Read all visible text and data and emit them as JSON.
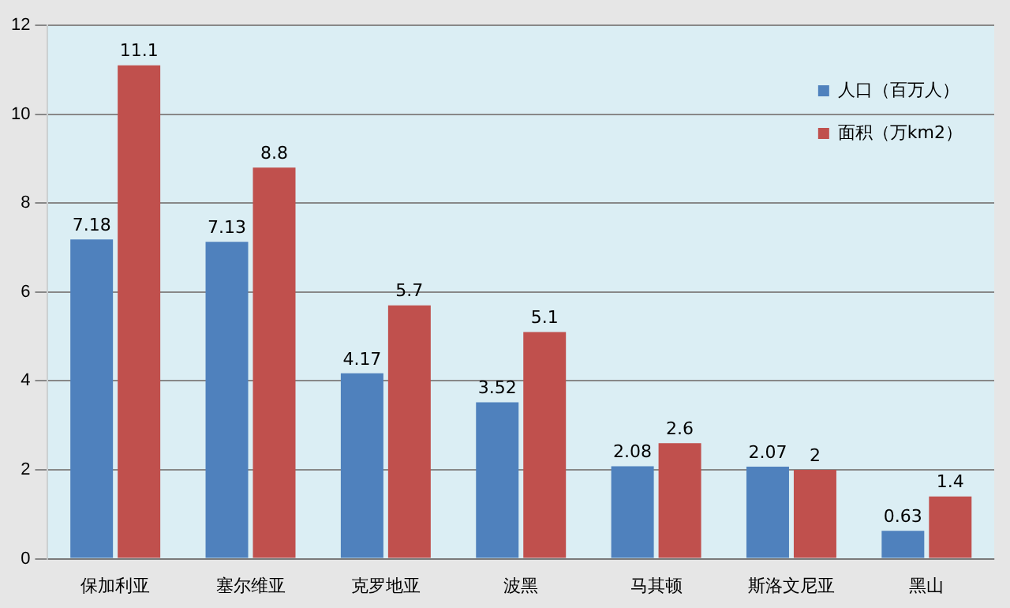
{
  "chart_data": {
    "type": "bar",
    "categories": [
      "保加利亚",
      "塞尔维亚",
      "克罗地亚",
      "波黑",
      "马其顿",
      "斯洛文尼亚",
      "黑山"
    ],
    "series": [
      {
        "name": "人口（百万人）",
        "color": "#4f81bd",
        "values": [
          7.18,
          7.13,
          4.17,
          3.52,
          2.08,
          2.07,
          0.63
        ]
      },
      {
        "name": "面积（万km2）",
        "color": "#c0504d",
        "values": [
          11.1,
          8.8,
          5.7,
          5.1,
          2.6,
          2,
          1.4
        ]
      }
    ],
    "ylim": [
      0,
      12
    ],
    "yticks": [
      0,
      2,
      4,
      6,
      8,
      10,
      12
    ],
    "grid": "y",
    "legend": "top right",
    "data_labels": true
  }
}
